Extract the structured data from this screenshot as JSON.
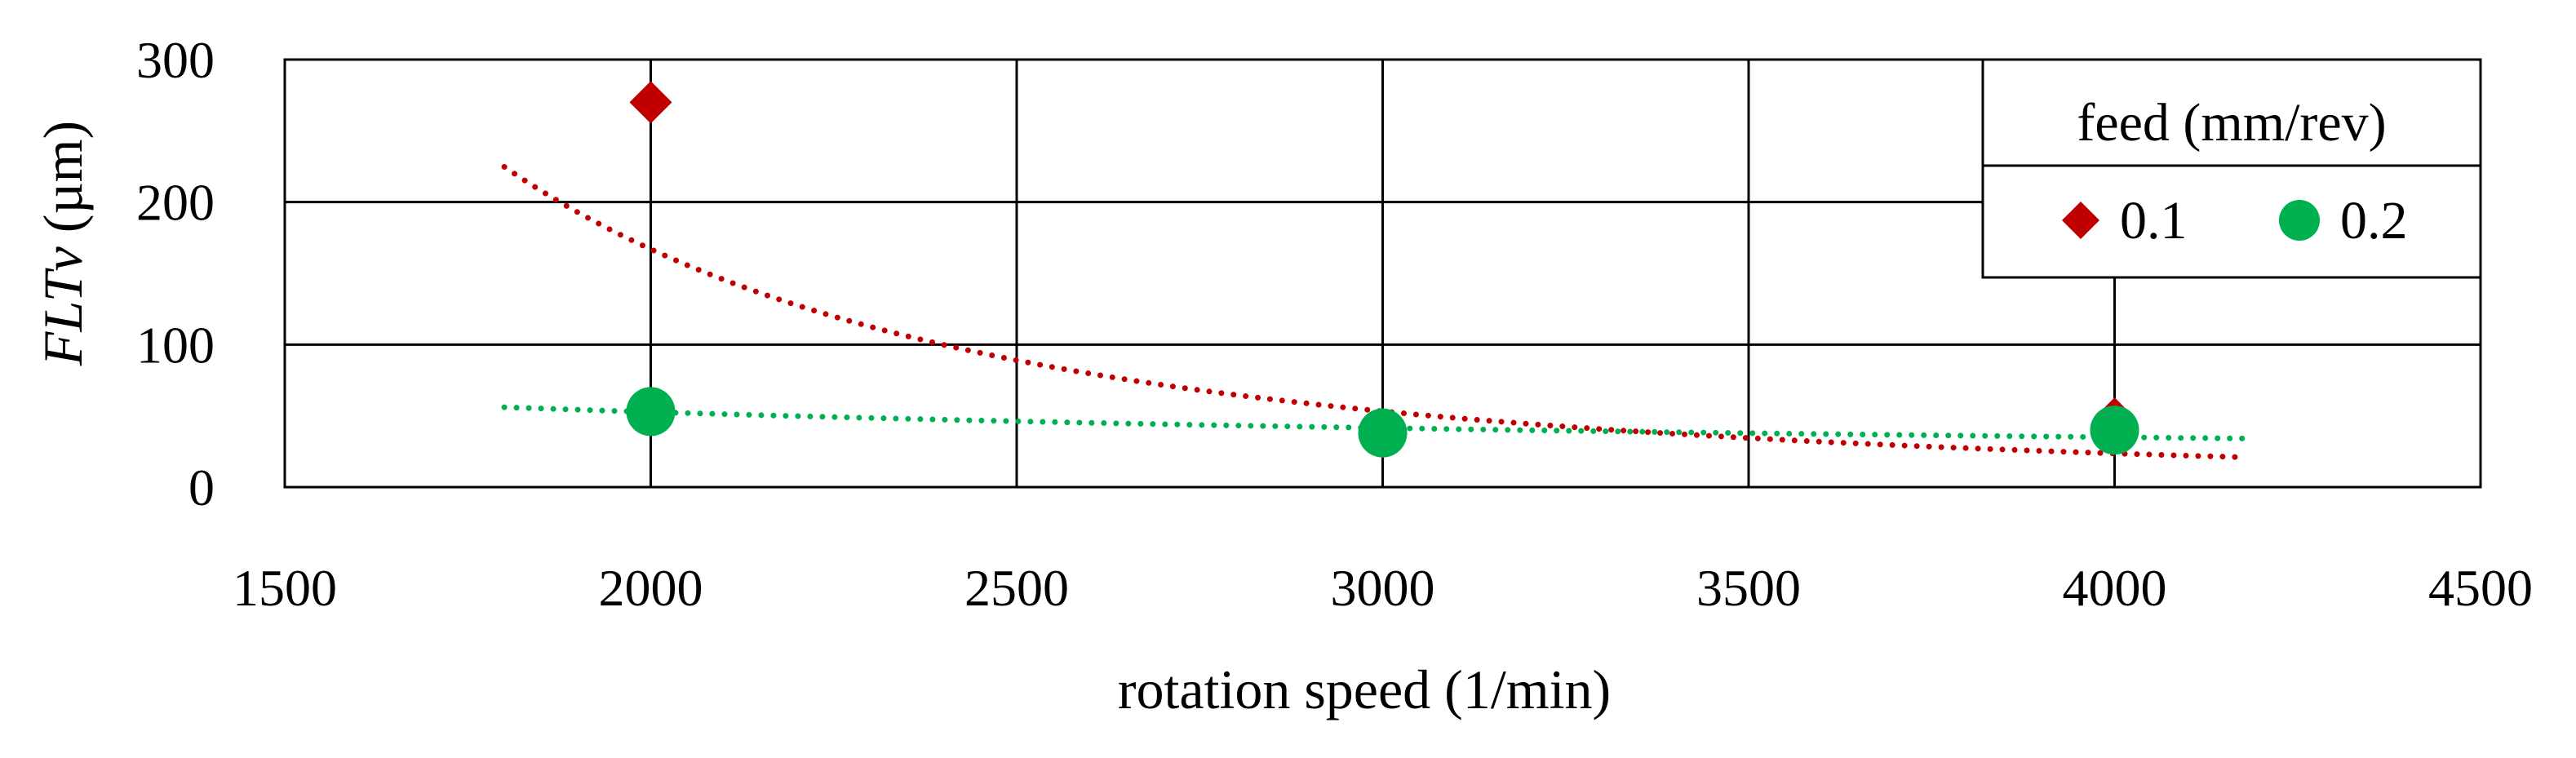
{
  "chart_data": {
    "type": "scatter",
    "xlabel": "rotation speed (1/min)",
    "ylabel_italic": "FLTv",
    "ylabel_rest": " (µm)",
    "xlim": [
      1500,
      4500
    ],
    "ylim": [
      0,
      300
    ],
    "xticks": [
      1500,
      2000,
      2500,
      3000,
      3500,
      4000,
      4500
    ],
    "yticks": [
      0,
      100,
      200,
      300
    ],
    "grid": true,
    "legend": {
      "title": "feed (mm/rev)",
      "position": "top-right"
    },
    "series": [
      {
        "name": "0.1",
        "marker": "diamond",
        "color": "#C00000",
        "x": [
          2000,
          3000,
          4000
        ],
        "y": [
          270,
          35,
          48
        ],
        "trendline": {
          "type": "power",
          "coef": 340000000000.0,
          "exp": -2.82,
          "x_range": [
            1800,
            4180
          ]
        }
      },
      {
        "name": "0.2",
        "marker": "circle",
        "color": "#00B050",
        "x": [
          2000,
          3000,
          4000
        ],
        "y": [
          53,
          38,
          40
        ],
        "trendline": {
          "type": "power",
          "coef": 4670,
          "exp": -0.59,
          "x_range": [
            1800,
            4180
          ]
        }
      }
    ]
  }
}
